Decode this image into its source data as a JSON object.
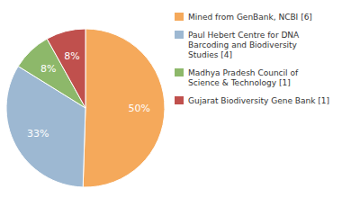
{
  "chart_data": {
    "type": "pie",
    "categories": [
      "Mined from GenBank, NCBI [6]",
      "Paul Hebert Centre for DNA\nBarcoding and Biodiversity\nStudies [4]",
      "Madhya Pradesh Council of\nScience & Technology [1]",
      "Gujarat Biodiversity Gene Bank [1]"
    ],
    "values": [
      50,
      33,
      8,
      8
    ],
    "value_labels": [
      "50%",
      "33%",
      "8%",
      "8%"
    ],
    "colors": [
      "#F5A95B",
      "#9DB8D2",
      "#8DB86A",
      "#C0504D"
    ],
    "data_labels": true,
    "legend": "right"
  }
}
